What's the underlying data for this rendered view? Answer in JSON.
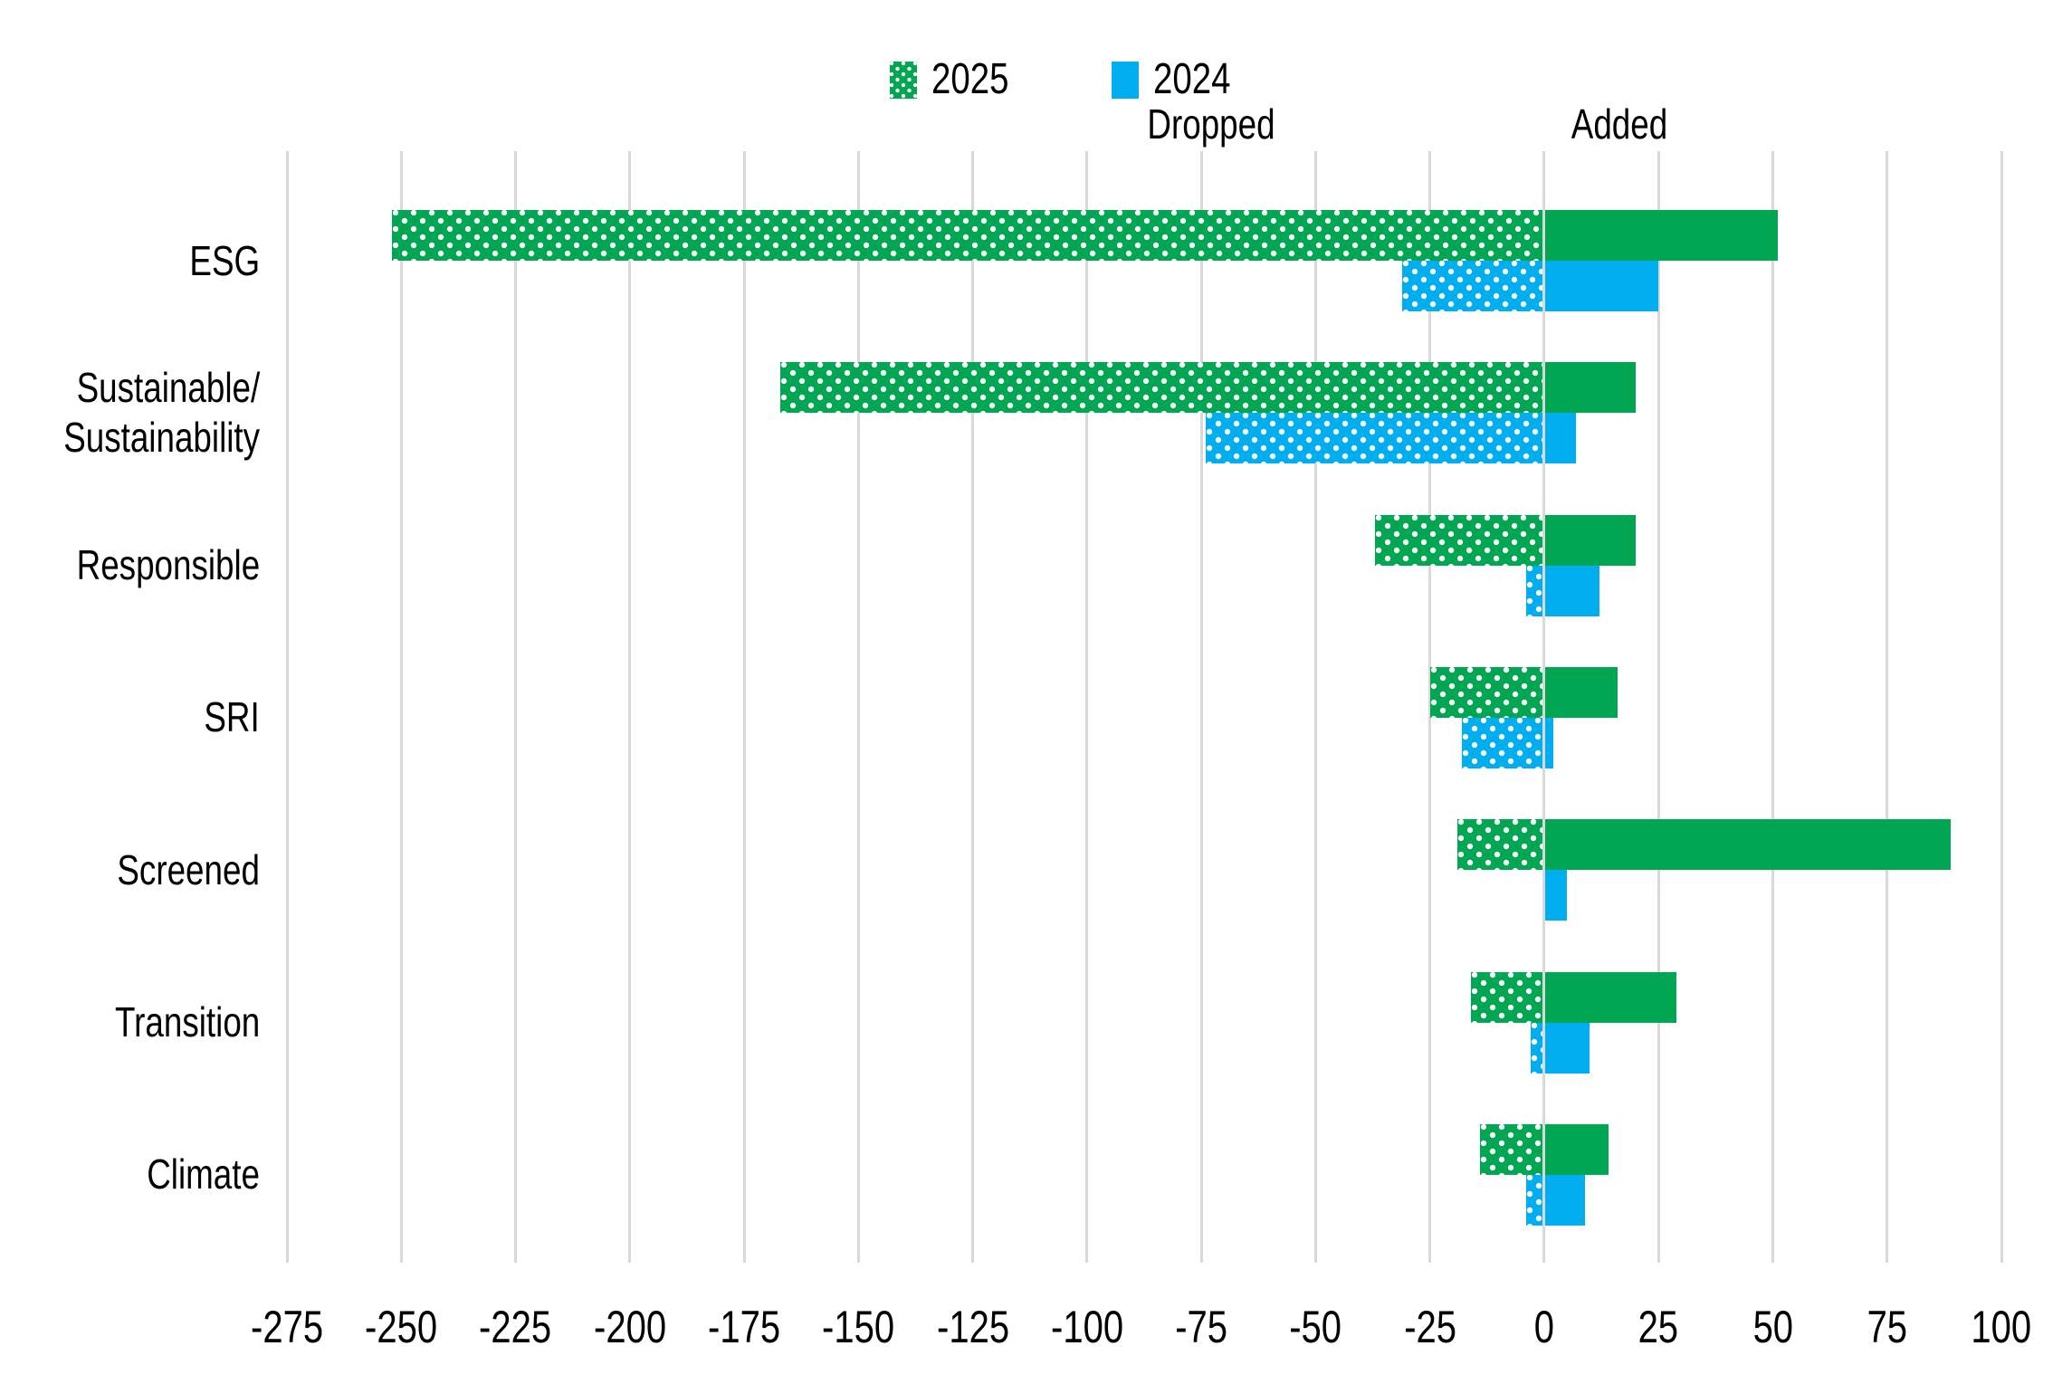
{
  "legend": {
    "items": [
      {
        "label": "2025",
        "color": "#00A651",
        "pattern": "white-dots"
      },
      {
        "label": "2024",
        "color": "#00AEEF",
        "pattern": "solid"
      }
    ]
  },
  "zones": {
    "dropped": "Dropped",
    "added": "Added"
  },
  "chart_data": {
    "type": "bar",
    "orientation": "horizontal",
    "diverging": true,
    "title": "",
    "subtitle": "",
    "legend_position": "top-center",
    "grid": "vertical-gridlines-only",
    "categories": [
      "ESG",
      "Sustainable/Sustainability",
      "Responsible",
      "SRI",
      "Screened",
      "Transition",
      "Climate"
    ],
    "category_label_lines": [
      [
        "ESG"
      ],
      [
        "Sustainable/",
        "Sustainability"
      ],
      [
        "Responsible"
      ],
      [
        "SRI"
      ],
      [
        "Screened"
      ],
      [
        "Transition"
      ],
      [
        "Climate"
      ]
    ],
    "series": [
      {
        "name": "2025",
        "color": "#00A651",
        "dropped_pattern": "white-dots",
        "added_pattern": "solid",
        "dropped": [
          -252,
          -167,
          -37,
          -25,
          -19,
          -16,
          -14
        ],
        "added": [
          51,
          20,
          20,
          16,
          89,
          29,
          14
        ]
      },
      {
        "name": "2024",
        "color": "#00AEEF",
        "dropped_pattern": "white-dots",
        "added_pattern": "solid",
        "dropped": [
          -31,
          -74,
          -4,
          -18,
          0,
          -3,
          -4
        ],
        "added": [
          25,
          7,
          12,
          2,
          5,
          10,
          9
        ]
      }
    ],
    "x_axis": {
      "min": -275,
      "max": 100,
      "step": 25,
      "tick_labels": [
        "-275",
        "-250",
        "-225",
        "-200",
        "-175",
        "-150",
        "-125",
        "-100",
        "-75",
        "-50",
        "-25",
        "0",
        "25",
        "50",
        "75",
        "100"
      ]
    },
    "gridline_color": "#D9D9D9"
  }
}
